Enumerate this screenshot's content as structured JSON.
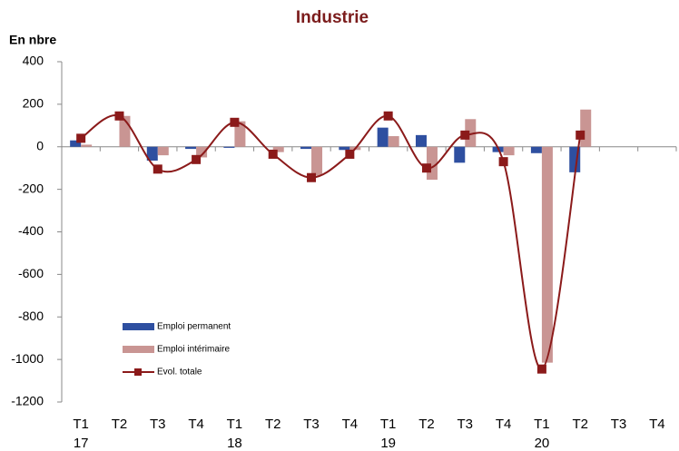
{
  "chart_data": {
    "type": "bar-line",
    "title": "Industrie",
    "y_label": "En nbre",
    "categories": [
      "T1",
      "T2",
      "T3",
      "T4",
      "T1",
      "T2",
      "T3",
      "T4",
      "T1",
      "T2",
      "T3",
      "T4",
      "T1",
      "T2",
      "T3",
      "T4"
    ],
    "category_years": [
      "17",
      null,
      null,
      null,
      "18",
      null,
      null,
      null,
      "19",
      null,
      null,
      null,
      "20",
      null,
      null,
      null
    ],
    "series": [
      {
        "name": "Emploi permanent",
        "type": "bar",
        "color": "#2e4fa0",
        "values": [
          30,
          0,
          -65,
          -10,
          -5,
          0,
          -10,
          -15,
          90,
          55,
          -75,
          -25,
          -30,
          -120,
          null,
          null
        ]
      },
      {
        "name": "Emploi intérimaire",
        "type": "bar",
        "color": "#c99593",
        "values": [
          10,
          145,
          -40,
          -50,
          120,
          -25,
          -135,
          -15,
          50,
          -155,
          130,
          -40,
          -1015,
          175,
          null,
          null
        ]
      },
      {
        "name": "Evol. totale",
        "type": "line",
        "color": "#8b1a1a",
        "values": [
          40,
          145,
          -105,
          -60,
          115,
          -35,
          -145,
          -35,
          145,
          -100,
          55,
          -70,
          -1045,
          55,
          null,
          null
        ]
      }
    ],
    "ylim": [
      -1200,
      400
    ],
    "yticks": [
      400,
      200,
      0,
      -200,
      -400,
      -600,
      -800,
      -1000,
      -1200
    ],
    "grid": false,
    "legend": "lower left"
  }
}
